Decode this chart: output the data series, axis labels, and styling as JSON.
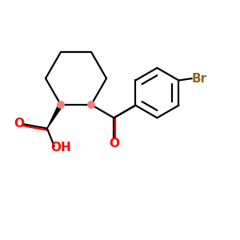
{
  "bg_color": "#ffffff",
  "bond_color": "#000000",
  "oxygen_color": "#FF0000",
  "bromine_color": "#8B6914",
  "red_dot_color": "#F08080",
  "line_width": 1.6,
  "figsize": [
    3.0,
    3.0
  ],
  "dpi": 100,
  "xlim": [
    0,
    10
  ],
  "ylim": [
    0,
    10
  ]
}
